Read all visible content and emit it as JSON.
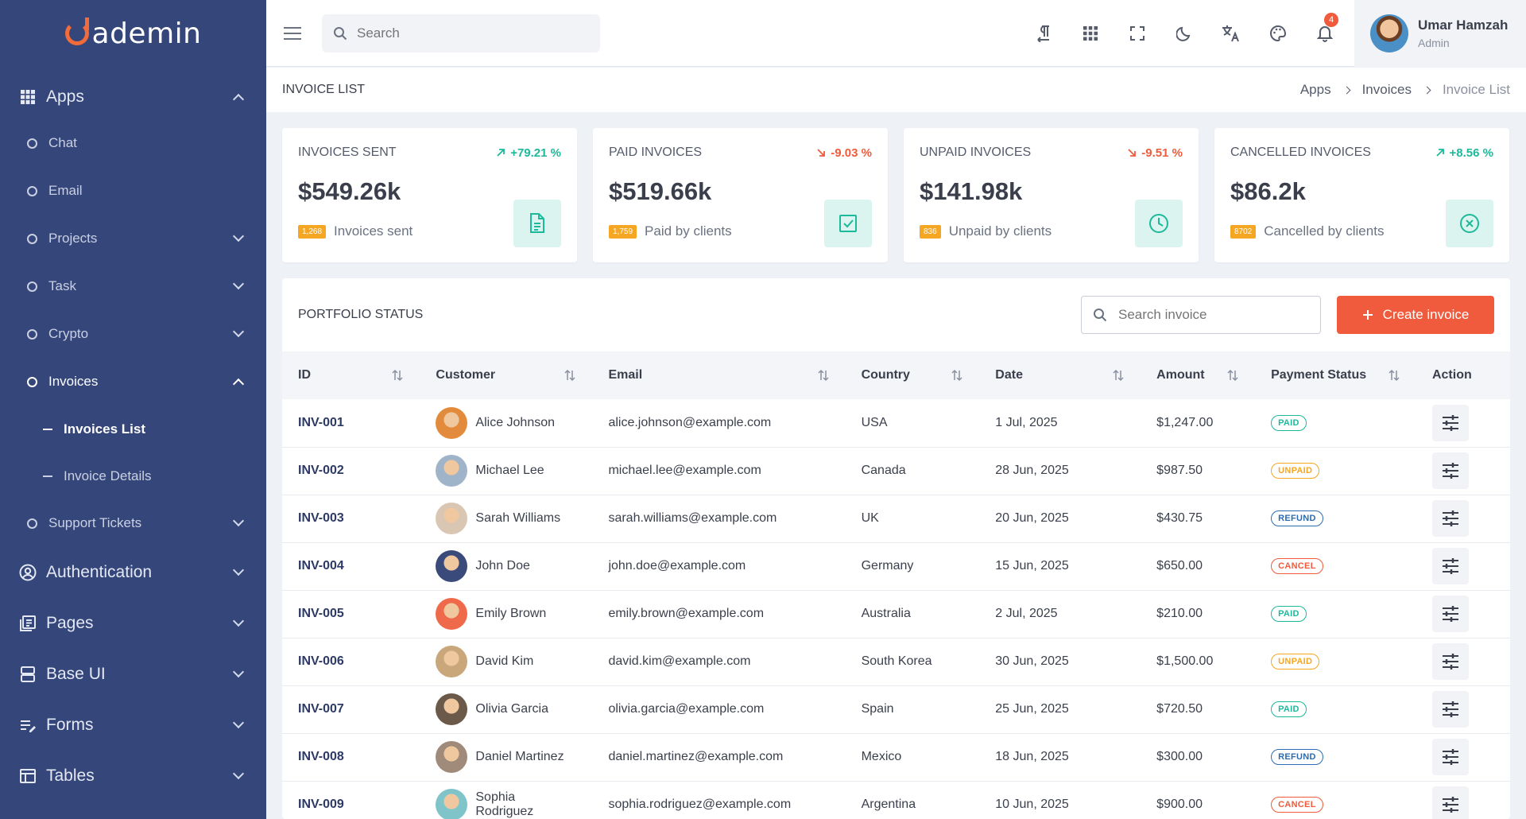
{
  "brand": {
    "name": "ademin"
  },
  "sidebar": {
    "groups": [
      {
        "label": "Apps",
        "icon": "grid-icon",
        "expanded": true
      },
      {
        "label": "Authentication",
        "icon": "user-circle-icon"
      },
      {
        "label": "Pages",
        "icon": "pages-icon"
      },
      {
        "label": "Base UI",
        "icon": "layers-icon"
      },
      {
        "label": "Forms",
        "icon": "form-icon"
      },
      {
        "label": "Tables",
        "icon": "table-icon"
      }
    ],
    "apps_items": [
      {
        "label": "Chat"
      },
      {
        "label": "Email"
      },
      {
        "label": "Projects"
      },
      {
        "label": "Task"
      },
      {
        "label": "Crypto"
      },
      {
        "label": "Invoices"
      },
      {
        "label": "Support Tickets"
      }
    ],
    "invoices_sub": [
      {
        "label": "Invoices List"
      },
      {
        "label": "Invoice Details"
      }
    ]
  },
  "topbar": {
    "search_placeholder": "Search",
    "notification_count": "4",
    "user": {
      "name": "Umar Hamzah",
      "role": "Admin"
    }
  },
  "page": {
    "title": "INVOICE LIST",
    "breadcrumb": [
      "Apps",
      "Invoices",
      "Invoice List"
    ]
  },
  "stats": [
    {
      "title": "INVOICES SENT",
      "trend": "+79.21 %",
      "direction": "up",
      "value": "$549.26k",
      "count": "1,268",
      "caption": "Invoices sent",
      "icon": "file-icon"
    },
    {
      "title": "PAID INVOICES",
      "trend": "-9.03 %",
      "direction": "down",
      "value": "$519.66k",
      "count": "1,759",
      "caption": "Paid by clients",
      "icon": "checkbox-icon"
    },
    {
      "title": "UNPAID INVOICES",
      "trend": "-9.51 %",
      "direction": "down",
      "value": "$141.98k",
      "count": "836",
      "caption": "Unpaid by clients",
      "icon": "clock-icon"
    },
    {
      "title": "CANCELLED INVOICES",
      "trend": "+8.56 %",
      "direction": "up",
      "value": "$86.2k",
      "count": "8702",
      "caption": "Cancelled by clients",
      "icon": "x-circle-icon"
    }
  ],
  "portfolio": {
    "title": "PORTFOLIO STATUS",
    "search_placeholder": "Search invoice",
    "create_label": "Create invoice",
    "columns": [
      "ID",
      "Customer",
      "Email",
      "Country",
      "Date",
      "Amount",
      "Payment Status",
      "Action"
    ],
    "rows": [
      {
        "id": "INV-001",
        "customer": "Alice Johnson",
        "email": "alice.johnson@example.com",
        "country": "USA",
        "date": "1 Jul, 2025",
        "amount": "$1,247.00",
        "status": "PAID",
        "avatar_color": "#e38b3c"
      },
      {
        "id": "INV-002",
        "customer": "Michael Lee",
        "email": "michael.lee@example.com",
        "country": "Canada",
        "date": "28 Jun, 2025",
        "amount": "$987.50",
        "status": "UNPAID",
        "avatar_color": "#9fb4c9"
      },
      {
        "id": "INV-003",
        "customer": "Sarah Williams",
        "email": "sarah.williams@example.com",
        "country": "UK",
        "date": "20 Jun, 2025",
        "amount": "$430.75",
        "status": "REFUND",
        "avatar_color": "#d9c6b3"
      },
      {
        "id": "INV-004",
        "customer": "John Doe",
        "email": "john.doe@example.com",
        "country": "Germany",
        "date": "15 Jun, 2025",
        "amount": "$650.00",
        "status": "CANCEL",
        "avatar_color": "#3a4a7a"
      },
      {
        "id": "INV-005",
        "customer": "Emily Brown",
        "email": "emily.brown@example.com",
        "country": "Australia",
        "date": "2 Jul, 2025",
        "amount": "$210.00",
        "status": "PAID",
        "avatar_color": "#ef6a4a"
      },
      {
        "id": "INV-006",
        "customer": "David Kim",
        "email": "david.kim@example.com",
        "country": "South Korea",
        "date": "30 Jun, 2025",
        "amount": "$1,500.00",
        "status": "UNPAID",
        "avatar_color": "#c9a77a"
      },
      {
        "id": "INV-007",
        "customer": "Olivia Garcia",
        "email": "olivia.garcia@example.com",
        "country": "Spain",
        "date": "25 Jun, 2025",
        "amount": "$720.50",
        "status": "PAID",
        "avatar_color": "#6b5a4a"
      },
      {
        "id": "INV-008",
        "customer": "Daniel Martinez",
        "email": "daniel.martinez@example.com",
        "country": "Mexico",
        "date": "18 Jun, 2025",
        "amount": "$300.00",
        "status": "REFUND",
        "avatar_color": "#a08a7a"
      },
      {
        "id": "INV-009",
        "customer": "Sophia Rodriguez",
        "email": "sophia.rodriguez@example.com",
        "country": "Argentina",
        "date": "10 Jun, 2025",
        "amount": "$900.00",
        "status": "CANCEL",
        "avatar_color": "#7fc4c9"
      }
    ]
  },
  "colors": {
    "sidebar": "#35467a",
    "accent": "#ef5b3c",
    "success": "#1cb99a",
    "warning": "#f5a623",
    "info": "#2b6cb0"
  }
}
